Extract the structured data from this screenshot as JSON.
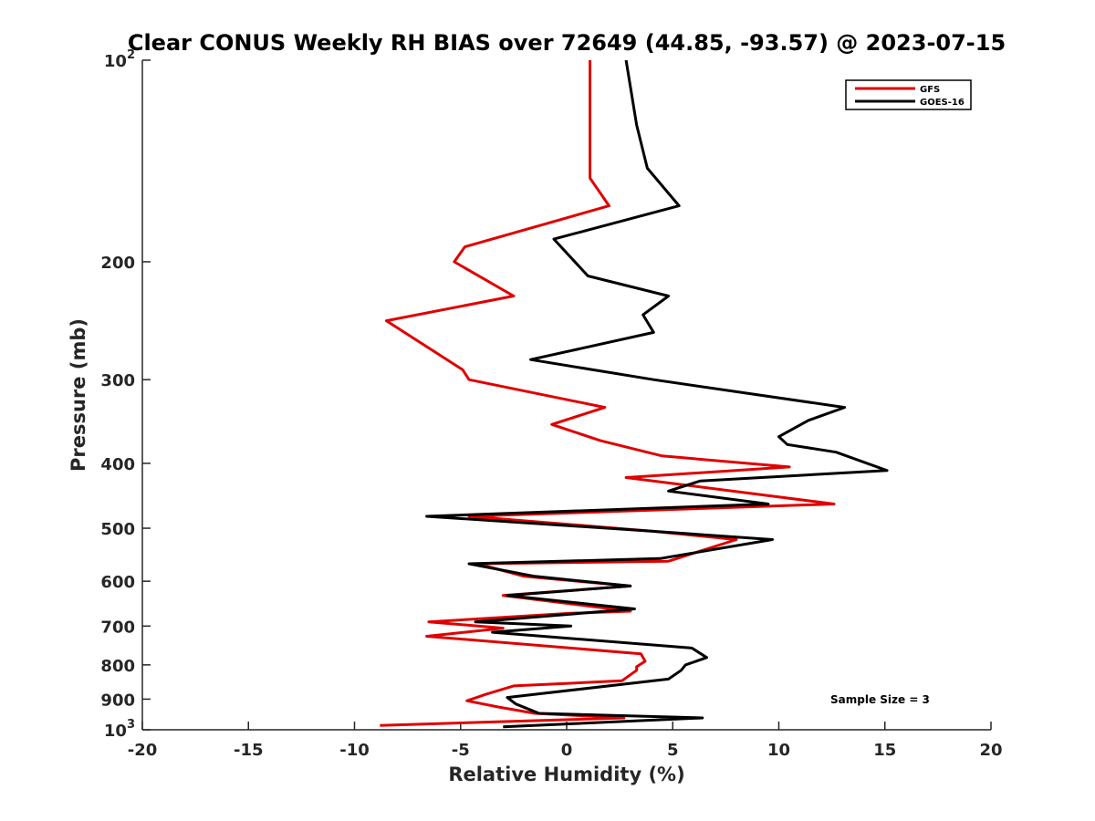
{
  "chart_data": {
    "type": "line",
    "title": "Clear CONUS Weekly RH BIAS over 72649 (44.85, -93.57) @ 2023-07-15",
    "xlabel": "Relative Humidity (%)",
    "ylabel": "Pressure (mb)",
    "xlim": [
      -20,
      20
    ],
    "ylim": [
      100,
      1000
    ],
    "y_scale": "log",
    "y_reversed": true,
    "grid": false,
    "legend_placement": "top-right",
    "x_ticks": [
      -20,
      -15,
      -10,
      -5,
      0,
      5,
      10,
      15,
      20
    ],
    "x_tick_labels": [
      "-20",
      "-15",
      "-10",
      "-5",
      "0",
      "5",
      "10",
      "15",
      "20"
    ],
    "y_ticks": [
      100,
      200,
      300,
      400,
      500,
      600,
      700,
      800,
      900,
      1000
    ],
    "y_tick_labels": [
      {
        "base": "10",
        "exp": "2"
      },
      {
        "base": "200",
        "exp": ""
      },
      {
        "base": "300",
        "exp": ""
      },
      {
        "base": "400",
        "exp": ""
      },
      {
        "base": "500",
        "exp": ""
      },
      {
        "base": "600",
        "exp": ""
      },
      {
        "base": "700",
        "exp": ""
      },
      {
        "base": "800",
        "exp": ""
      },
      {
        "base": "900",
        "exp": ""
      },
      {
        "base": "10",
        "exp": "3"
      }
    ],
    "annotation": "Sample Size = 3",
    "series": [
      {
        "name": "GFS",
        "color": "#e00000",
        "points": [
          [
            1.1,
            100
          ],
          [
            1.1,
            125
          ],
          [
            1.1,
            150
          ],
          [
            2.0,
            165
          ],
          [
            -4.8,
            190
          ],
          [
            -5.3,
            200
          ],
          [
            -2.5,
            225
          ],
          [
            -8.5,
            245
          ],
          [
            -4.9,
            290
          ],
          [
            -4.6,
            300
          ],
          [
            1.8,
            330
          ],
          [
            -0.7,
            350
          ],
          [
            1.6,
            370
          ],
          [
            4.5,
            390
          ],
          [
            10.5,
            405
          ],
          [
            2.8,
            420
          ],
          [
            12.6,
            460
          ],
          [
            -4.6,
            480
          ],
          [
            4.0,
            505
          ],
          [
            8.0,
            520
          ],
          [
            4.8,
            560
          ],
          [
            -4.2,
            565
          ],
          [
            -2.0,
            590
          ],
          [
            3.0,
            610
          ],
          [
            -3.0,
            630
          ],
          [
            3.0,
            665
          ],
          [
            0.2,
            670
          ],
          [
            -6.5,
            690
          ],
          [
            -3.0,
            705
          ],
          [
            -6.6,
            725
          ],
          [
            3.5,
            770
          ],
          [
            3.7,
            790
          ],
          [
            3.3,
            805
          ],
          [
            3.3,
            815
          ],
          [
            2.6,
            845
          ],
          [
            -2.5,
            860
          ],
          [
            -3.8,
            885
          ],
          [
            -4.7,
            905
          ],
          [
            -3.2,
            925
          ],
          [
            -1.5,
            945
          ],
          [
            2.7,
            960
          ],
          [
            -8.8,
            985
          ]
        ]
      },
      {
        "name": "GOES-16",
        "color": "#000000",
        "points": [
          [
            2.8,
            100
          ],
          [
            3.3,
            125
          ],
          [
            3.8,
            145
          ],
          [
            5.3,
            165
          ],
          [
            -0.6,
            185
          ],
          [
            1.0,
            210
          ],
          [
            4.8,
            225
          ],
          [
            3.6,
            240
          ],
          [
            4.1,
            255
          ],
          [
            -1.7,
            280
          ],
          [
            4.1,
            300
          ],
          [
            13.1,
            330
          ],
          [
            11.4,
            345
          ],
          [
            10.0,
            365
          ],
          [
            10.4,
            375
          ],
          [
            12.7,
            385
          ],
          [
            15.1,
            410
          ],
          [
            6.3,
            425
          ],
          [
            4.8,
            440
          ],
          [
            9.5,
            460
          ],
          [
            -6.6,
            480
          ],
          [
            4.0,
            505
          ],
          [
            9.7,
            520
          ],
          [
            4.4,
            555
          ],
          [
            -4.6,
            565
          ],
          [
            -1.5,
            590
          ],
          [
            3.0,
            610
          ],
          [
            -2.8,
            630
          ],
          [
            3.2,
            660
          ],
          [
            -4.3,
            690
          ],
          [
            0.2,
            700
          ],
          [
            -3.5,
            715
          ],
          [
            5.9,
            755
          ],
          [
            6.6,
            780
          ],
          [
            5.6,
            800
          ],
          [
            5.4,
            815
          ],
          [
            4.8,
            840
          ],
          [
            -2.8,
            895
          ],
          [
            -2.4,
            915
          ],
          [
            -1.3,
            945
          ],
          [
            6.4,
            960
          ],
          [
            -3.0,
            990
          ]
        ]
      }
    ]
  }
}
